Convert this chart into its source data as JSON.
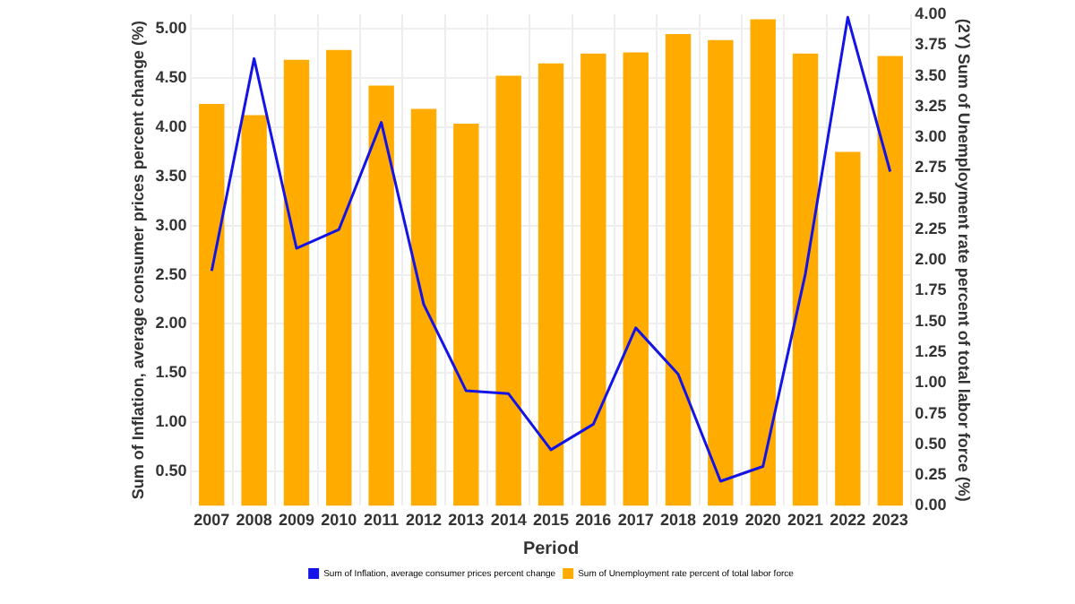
{
  "chart_data": {
    "type": "bar",
    "xlabel": "Period",
    "ylabel": "Sum of Inflation, average consumer prices percent change (%)",
    "y2label": "(2Y) Sum of Unemployment rate percent of total labor force (%)",
    "categories": [
      "2007",
      "2008",
      "2009",
      "2010",
      "2011",
      "2012",
      "2013",
      "2014",
      "2015",
      "2016",
      "2017",
      "2018",
      "2019",
      "2020",
      "2021",
      "2022",
      "2023"
    ],
    "series": [
      {
        "name": "Sum of Inflation, average consumer prices percent change",
        "type": "line",
        "color": "#1414e6",
        "values": [
          2.54,
          4.7,
          2.77,
          2.96,
          4.05,
          2.2,
          1.32,
          1.29,
          0.72,
          0.98,
          1.96,
          1.49,
          0.4,
          0.55,
          2.51,
          5.12,
          3.55
        ]
      },
      {
        "name": "Sum of Unemployment rate percent of total labor force",
        "axis": "y2",
        "color": "#ffab00",
        "values": [
          3.27,
          3.18,
          3.63,
          3.71,
          3.42,
          3.23,
          3.11,
          3.5,
          3.6,
          3.68,
          3.69,
          3.84,
          3.79,
          3.96,
          3.68,
          2.88,
          3.66
        ]
      }
    ],
    "ylim": [
      0.15,
      5.15
    ],
    "yticks": [
      {
        "value": 0.5,
        "label": "0.50"
      },
      {
        "value": 1,
        "label": "1.00"
      },
      {
        "value": 1.5,
        "label": "1.50"
      },
      {
        "value": 2,
        "label": "2.00"
      },
      {
        "value": 2.5,
        "label": "2.50"
      },
      {
        "value": 3,
        "label": "3.00"
      },
      {
        "value": 3.5,
        "label": "3.50"
      },
      {
        "value": 4,
        "label": "4.00"
      },
      {
        "value": 4.5,
        "label": "4.50"
      },
      {
        "value": 5,
        "label": "5.00"
      }
    ],
    "y2lim": [
      0,
      4
    ],
    "y2ticks": [
      {
        "value": 0,
        "label": "0.00"
      },
      {
        "value": 0.25,
        "label": "0.25"
      },
      {
        "value": 0.5,
        "label": "0.50"
      },
      {
        "value": 0.75,
        "label": "0.75"
      },
      {
        "value": 1,
        "label": "1.00"
      },
      {
        "value": 1.25,
        "label": "1.25"
      },
      {
        "value": 1.5,
        "label": "1.50"
      },
      {
        "value": 1.75,
        "label": "1.75"
      },
      {
        "value": 2,
        "label": "2.00"
      },
      {
        "value": 2.25,
        "label": "2.25"
      },
      {
        "value": 2.5,
        "label": "2.50"
      },
      {
        "value": 2.75,
        "label": "2.75"
      },
      {
        "value": 3,
        "label": "3.00"
      },
      {
        "value": 3.25,
        "label": "3.25"
      },
      {
        "value": 3.5,
        "label": "3.50"
      },
      {
        "value": 3.75,
        "label": "3.75"
      },
      {
        "value": 4,
        "label": "4.00"
      }
    ],
    "grid": true,
    "legend": "bottom",
    "marker": "none",
    "line_style": "solid"
  }
}
